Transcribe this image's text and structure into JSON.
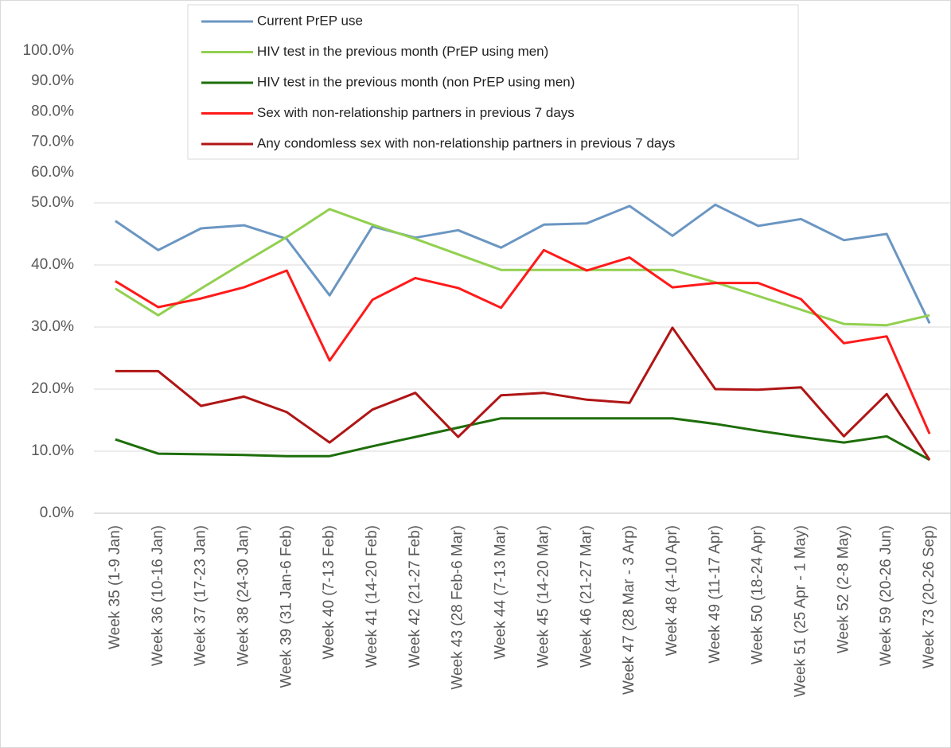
{
  "chart_data": {
    "type": "line",
    "categories": [
      "Week 35 (1-9 Jan)",
      "Week 36 (10-16 Jan)",
      "Week 37 (17-23 Jan)",
      "Week 38 (24-30 Jan)",
      "Week 39 (31 Jan-6 Feb)",
      "Week 40 (7-13 Feb)",
      "Week 41 (14-20 Feb)",
      "Week 42 (21-27 Feb)",
      "Week 43 (28 Feb-6 Mar)",
      "Week 44 (7-13 Mar)",
      "Week 45 (14-20 Mar)",
      "Week 46 (21-27 Mar)",
      "Week 47 (28 Mar - 3 Arp)",
      "Week 48  (4-10 Apr)",
      "Week 49 (11-17 Apr)",
      "Week 50 (18-24 Apr)",
      "Week 51 (25 Apr - 1 May)",
      "Week 52 (2-8 May)",
      "Week 59 (20-26 Jun)",
      "Week 73 (20-26 Sep)"
    ],
    "series": [
      {
        "name": "Current PrEP use",
        "color": "#6b96c2",
        "values": [
          47.1,
          42.4,
          45.9,
          46.4,
          44.2,
          35.1,
          46.2,
          44.4,
          45.6,
          42.8,
          46.5,
          46.7,
          49.5,
          44.7,
          49.7,
          46.3,
          47.4,
          44.0,
          45.0,
          30.6
        ]
      },
      {
        "name": "HIV test in the previous month (PrEP using men)",
        "color": "#92d050",
        "values": [
          36.2,
          31.9,
          36.2,
          40.4,
          44.5,
          49.0,
          46.5,
          44.2,
          41.7,
          39.2,
          39.2,
          39.2,
          39.2,
          39.2,
          37.2,
          35.0,
          32.8,
          30.5,
          30.3,
          31.9
        ]
      },
      {
        "name": "HIV test in the previous month (non PrEP using men)",
        "color": "#1e6e0a",
        "values": [
          11.9,
          9.6,
          9.5,
          9.4,
          9.2,
          9.2,
          10.8,
          12.3,
          13.8,
          15.3,
          15.3,
          15.3,
          15.3,
          15.3,
          14.4,
          13.3,
          12.3,
          11.4,
          12.4,
          8.6
        ]
      },
      {
        "name": "Sex with non-relationship partners in previous 7 days",
        "color": "#ff1a1a",
        "values": [
          37.4,
          33.2,
          34.6,
          36.4,
          39.1,
          24.6,
          34.4,
          37.9,
          36.3,
          33.1,
          42.4,
          39.1,
          41.2,
          36.4,
          37.1,
          37.1,
          34.5,
          27.4,
          28.5,
          12.8
        ]
      },
      {
        "name": "Any condomless sex with non-relationship partners in previous 7 days",
        "color": "#b01515",
        "values": [
          22.9,
          22.9,
          17.3,
          18.8,
          16.3,
          11.4,
          16.7,
          19.4,
          12.3,
          19.0,
          19.4,
          18.3,
          17.8,
          29.9,
          20.0,
          19.9,
          20.3,
          12.4,
          19.2,
          8.6
        ]
      }
    ],
    "ylim": [
      0,
      100
    ],
    "y_axis_break": 50,
    "yticks": [
      {
        "value": 0,
        "label": "0.0%"
      },
      {
        "value": 10,
        "label": "10.0%"
      },
      {
        "value": 20,
        "label": "20.0%"
      },
      {
        "value": 30,
        "label": "30.0%"
      },
      {
        "value": 40,
        "label": "40.0%"
      },
      {
        "value": 50,
        "label": "50.0%"
      },
      {
        "value": 60,
        "label": "60.0%"
      },
      {
        "value": 70,
        "label": "70.0%"
      },
      {
        "value": 80,
        "label": "80.0%"
      },
      {
        "value": 90,
        "label": "90.0%"
      },
      {
        "value": 100,
        "label": "100.0%"
      }
    ],
    "grid": true
  }
}
